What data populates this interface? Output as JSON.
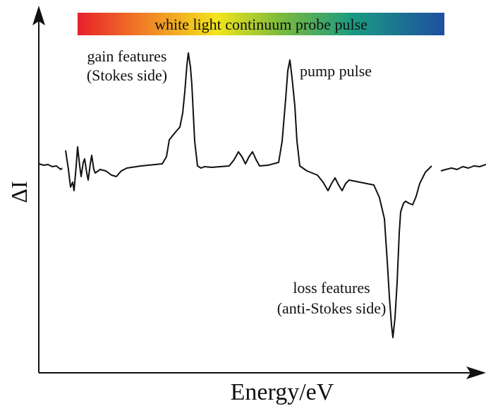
{
  "header": {
    "probe_label": "white light continuum probe pulse"
  },
  "annotations": {
    "gain": [
      "gain features",
      "(Stokes side)"
    ],
    "pump": "pump pulse",
    "loss": [
      "loss features",
      "(anti-Stokes side)"
    ]
  },
  "axes": {
    "y_label": "ΔI",
    "x_label": "Energy/eV"
  }
}
